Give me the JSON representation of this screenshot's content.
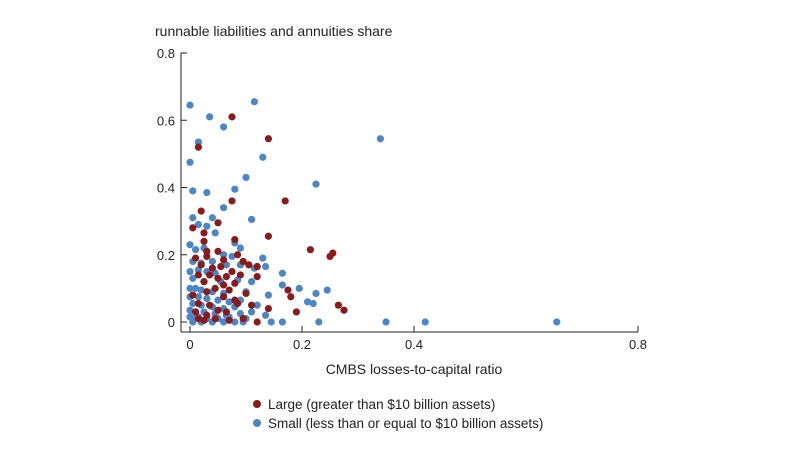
{
  "chart_data": {
    "type": "scatter",
    "ylabel": "runnable liabilities and annuities share",
    "xlabel": "CMBS losses-to-capital ratio",
    "xlim": [
      0,
      0.8
    ],
    "ylim": [
      0,
      0.8
    ],
    "xticks": [
      0,
      0.2,
      0.4,
      0.8
    ],
    "xtick_labels": [
      "0",
      "0.2",
      "0.4",
      "0.8"
    ],
    "yticks": [
      0,
      0.2,
      0.4,
      0.6,
      0.8
    ],
    "ytick_labels": [
      "0",
      "0.2",
      "0.4",
      "0.6",
      "0.8"
    ],
    "grid": false,
    "legend_position": "bottom",
    "series": [
      {
        "name": "Large (greater than $10 billion assets)",
        "color": "#8b1a1a",
        "points": [
          [
            0.075,
            0.61
          ],
          [
            0.14,
            0.545
          ],
          [
            0.015,
            0.52
          ],
          [
            0.17,
            0.36
          ],
          [
            0.075,
            0.36
          ],
          [
            0.02,
            0.33
          ],
          [
            0.05,
            0.295
          ],
          [
            0.005,
            0.28
          ],
          [
            0.025,
            0.265
          ],
          [
            0.025,
            0.24
          ],
          [
            0.08,
            0.245
          ],
          [
            0.14,
            0.255
          ],
          [
            0.03,
            0.21
          ],
          [
            0.05,
            0.21
          ],
          [
            0.085,
            0.2
          ],
          [
            0.215,
            0.215
          ],
          [
            0.255,
            0.205
          ],
          [
            0.25,
            0.195
          ],
          [
            0.01,
            0.19
          ],
          [
            0.03,
            0.195
          ],
          [
            0.06,
            0.185
          ],
          [
            0.095,
            0.18
          ],
          [
            0.105,
            0.17
          ],
          [
            0.12,
            0.165
          ],
          [
            0.02,
            0.17
          ],
          [
            0.04,
            0.16
          ],
          [
            0.055,
            0.165
          ],
          [
            0.075,
            0.15
          ],
          [
            0.015,
            0.14
          ],
          [
            0.035,
            0.14
          ],
          [
            0.05,
            0.13
          ],
          [
            0.065,
            0.135
          ],
          [
            0.09,
            0.14
          ],
          [
            0.12,
            0.135
          ],
          [
            0.025,
            0.12
          ],
          [
            0.06,
            0.11
          ],
          [
            0.08,
            0.115
          ],
          [
            0.045,
            0.1
          ],
          [
            0.07,
            0.095
          ],
          [
            0.03,
            0.09
          ],
          [
            0.1,
            0.085
          ],
          [
            0.175,
            0.095
          ],
          [
            0.18,
            0.075
          ],
          [
            0.005,
            0.08
          ],
          [
            0.06,
            0.075
          ],
          [
            0.08,
            0.065
          ],
          [
            0.085,
            0.055
          ],
          [
            0.015,
            0.055
          ],
          [
            0.035,
            0.05
          ],
          [
            0.11,
            0.05
          ],
          [
            0.14,
            0.04
          ],
          [
            0.19,
            0.03
          ],
          [
            0.265,
            0.05
          ],
          [
            0.275,
            0.035
          ],
          [
            0.01,
            0.03
          ],
          [
            0.03,
            0.02
          ],
          [
            0.05,
            0.035
          ],
          [
            0.065,
            0.03
          ],
          [
            0.045,
            0.01
          ],
          [
            0.07,
            0.005
          ],
          [
            0.015,
            0.01
          ],
          [
            0.095,
            0.01
          ],
          [
            0.12,
            0.0
          ],
          [
            0.025,
            0.005
          ]
        ]
      },
      {
        "name": "Small (less than or equal to $10 billion assets)",
        "color": "#4a86c8",
        "points": [
          [
            0.0,
            0.645
          ],
          [
            0.115,
            0.655
          ],
          [
            0.035,
            0.61
          ],
          [
            0.06,
            0.58
          ],
          [
            0.015,
            0.535
          ],
          [
            0.34,
            0.545
          ],
          [
            0.13,
            0.49
          ],
          [
            0.0,
            0.475
          ],
          [
            0.1,
            0.43
          ],
          [
            0.225,
            0.41
          ],
          [
            0.08,
            0.395
          ],
          [
            0.005,
            0.39
          ],
          [
            0.03,
            0.385
          ],
          [
            0.06,
            0.34
          ],
          [
            0.005,
            0.31
          ],
          [
            0.04,
            0.31
          ],
          [
            0.11,
            0.305
          ],
          [
            0.015,
            0.29
          ],
          [
            0.03,
            0.285
          ],
          [
            0.045,
            0.265
          ],
          [
            0.08,
            0.235
          ],
          [
            0.09,
            0.22
          ],
          [
            0.0,
            0.23
          ],
          [
            0.01,
            0.215
          ],
          [
            0.025,
            0.22
          ],
          [
            0.06,
            0.2
          ],
          [
            0.075,
            0.195
          ],
          [
            0.13,
            0.19
          ],
          [
            0.005,
            0.18
          ],
          [
            0.02,
            0.175
          ],
          [
            0.04,
            0.18
          ],
          [
            0.065,
            0.17
          ],
          [
            0.09,
            0.17
          ],
          [
            0.115,
            0.16
          ],
          [
            0.135,
            0.165
          ],
          [
            0.0,
            0.15
          ],
          [
            0.015,
            0.155
          ],
          [
            0.03,
            0.15
          ],
          [
            0.045,
            0.145
          ],
          [
            0.165,
            0.145
          ],
          [
            0.005,
            0.13
          ],
          [
            0.025,
            0.12
          ],
          [
            0.055,
            0.12
          ],
          [
            0.085,
            0.125
          ],
          [
            0.11,
            0.12
          ],
          [
            0.165,
            0.11
          ],
          [
            0.0,
            0.1
          ],
          [
            0.01,
            0.1
          ],
          [
            0.02,
            0.095
          ],
          [
            0.04,
            0.09
          ],
          [
            0.06,
            0.085
          ],
          [
            0.1,
            0.09
          ],
          [
            0.14,
            0.08
          ],
          [
            0.195,
            0.1
          ],
          [
            0.225,
            0.085
          ],
          [
            0.245,
            0.095
          ],
          [
            0.0,
            0.075
          ],
          [
            0.015,
            0.075
          ],
          [
            0.03,
            0.07
          ],
          [
            0.05,
            0.065
          ],
          [
            0.07,
            0.06
          ],
          [
            0.09,
            0.065
          ],
          [
            0.005,
            0.055
          ],
          [
            0.02,
            0.05
          ],
          [
            0.04,
            0.045
          ],
          [
            0.06,
            0.04
          ],
          [
            0.08,
            0.045
          ],
          [
            0.12,
            0.05
          ],
          [
            0.21,
            0.06
          ],
          [
            0.22,
            0.055
          ],
          [
            0.0,
            0.035
          ],
          [
            0.01,
            0.03
          ],
          [
            0.025,
            0.03
          ],
          [
            0.045,
            0.025
          ],
          [
            0.065,
            0.02
          ],
          [
            0.09,
            0.025
          ],
          [
            0.11,
            0.03
          ],
          [
            0.0,
            0.015
          ],
          [
            0.005,
            0.01
          ],
          [
            0.015,
            0.015
          ],
          [
            0.03,
            0.01
          ],
          [
            0.05,
            0.01
          ],
          [
            0.07,
            0.015
          ],
          [
            0.1,
            0.01
          ],
          [
            0.135,
            0.02
          ],
          [
            0.005,
            0.0
          ],
          [
            0.02,
            0.0
          ],
          [
            0.04,
            0.0
          ],
          [
            0.06,
            0.0
          ],
          [
            0.08,
            0.0
          ],
          [
            0.095,
            0.0
          ],
          [
            0.145,
            0.0
          ],
          [
            0.165,
            0.0
          ],
          [
            0.23,
            0.0
          ],
          [
            0.35,
            0.0
          ],
          [
            0.42,
            0.0
          ],
          [
            0.655,
            0.0
          ]
        ]
      }
    ]
  }
}
